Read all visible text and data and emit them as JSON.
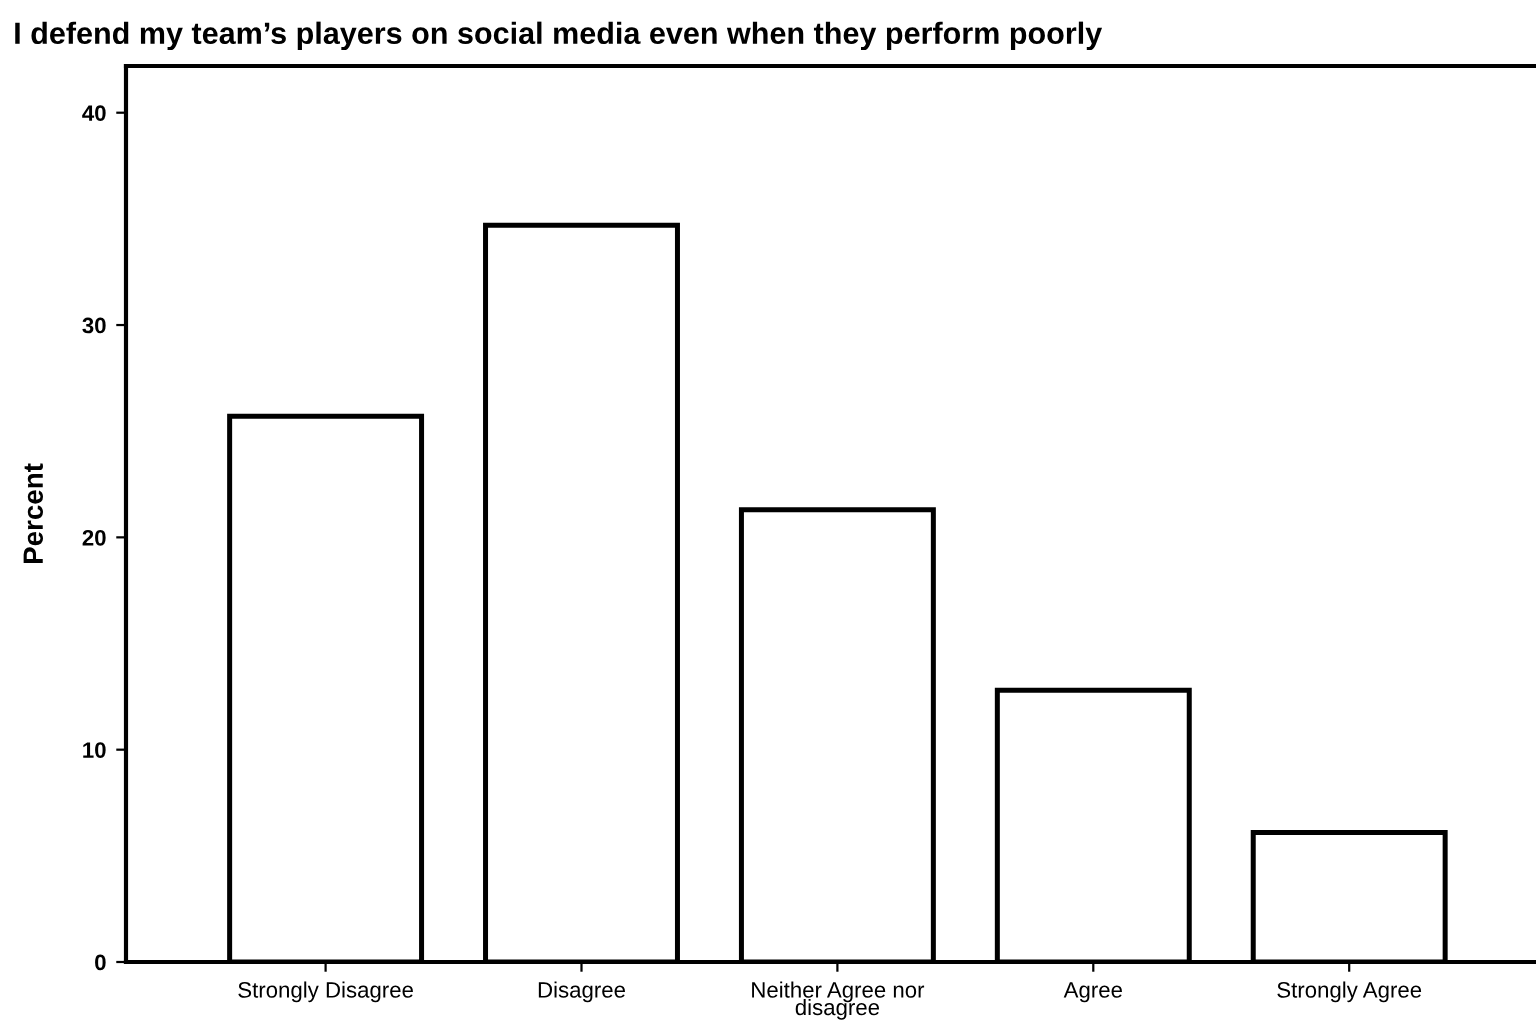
{
  "chart_data": {
    "type": "bar",
    "title": "I defend my team’s players on social media even when they perform poorly",
    "ylabel": "Percent",
    "categories": [
      "Strongly Disagree",
      "Disagree",
      "Neither Agree nor\ndisagree",
      "Agree",
      "Strongly Agree"
    ],
    "values": [
      25.7,
      34.7,
      21.3,
      12.8,
      6.1
    ],
    "color": "#ffffff",
    "ylim": [
      0,
      42.2
    ],
    "yticks": [
      0,
      10,
      20,
      30,
      40
    ],
    "grid": false
  }
}
